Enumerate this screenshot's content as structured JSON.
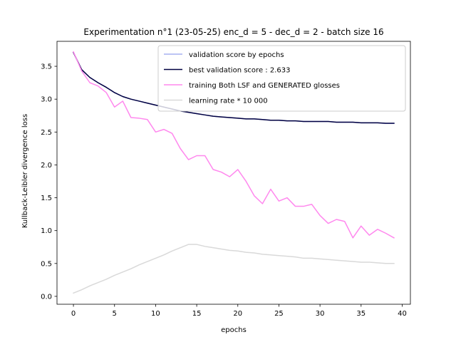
{
  "chart_data": {
    "type": "line",
    "title": "Experimentation n°1 (23-05-25) enc_d = 5 - dec_d = 2 - batch size 16",
    "xlabel": "epochs",
    "ylabel": "Kullback-Leibler divergence loss",
    "xlim": [
      -2,
      41
    ],
    "ylim": [
      -0.12,
      3.88
    ],
    "xticks": [
      0,
      5,
      10,
      15,
      20,
      25,
      30,
      35,
      40
    ],
    "yticks": [
      0.0,
      0.5,
      1.0,
      1.5,
      2.0,
      2.5,
      3.0,
      3.5
    ],
    "grid": false,
    "legend_position": "top-right",
    "x": [
      0,
      1,
      2,
      3,
      4,
      5,
      6,
      7,
      8,
      9,
      10,
      11,
      12,
      13,
      14,
      15,
      16,
      17,
      18,
      19,
      20,
      21,
      22,
      23,
      24,
      25,
      26,
      27,
      28,
      29,
      30,
      31,
      32,
      33,
      34,
      35,
      36,
      37,
      38,
      39
    ],
    "series": [
      {
        "name": "validation score by epochs",
        "color": "#a6b0f0",
        "values": [
          3.71,
          3.45,
          3.33,
          3.25,
          3.18,
          3.1,
          3.04,
          3.0,
          2.97,
          2.94,
          2.91,
          2.88,
          2.85,
          2.82,
          2.8,
          2.78,
          2.76,
          2.74,
          2.73,
          2.72,
          2.71,
          2.7,
          2.7,
          2.69,
          2.68,
          2.68,
          2.67,
          2.67,
          2.66,
          2.66,
          2.66,
          2.66,
          2.65,
          2.65,
          2.65,
          2.64,
          2.64,
          2.64,
          2.63,
          2.63
        ]
      },
      {
        "name": "best validation score : 2.633",
        "color": "#000040",
        "values": [
          3.71,
          3.45,
          3.33,
          3.25,
          3.18,
          3.1,
          3.04,
          3.0,
          2.97,
          2.94,
          2.91,
          2.88,
          2.85,
          2.82,
          2.8,
          2.78,
          2.76,
          2.74,
          2.73,
          2.72,
          2.71,
          2.7,
          2.7,
          2.69,
          2.68,
          2.68,
          2.67,
          2.67,
          2.66,
          2.66,
          2.66,
          2.66,
          2.65,
          2.65,
          2.65,
          2.64,
          2.64,
          2.64,
          2.633,
          2.633
        ]
      },
      {
        "name": "training Both LSF and GENERATED glosses",
        "color": "#ff88ee",
        "values": [
          3.72,
          3.43,
          3.25,
          3.2,
          3.1,
          2.88,
          2.97,
          2.72,
          2.71,
          2.69,
          2.5,
          2.54,
          2.48,
          2.25,
          2.08,
          2.14,
          2.14,
          1.93,
          1.89,
          1.82,
          1.93,
          1.75,
          1.53,
          1.41,
          1.63,
          1.45,
          1.5,
          1.37,
          1.37,
          1.4,
          1.23,
          1.11,
          1.17,
          1.14,
          0.89,
          1.07,
          0.93,
          1.02,
          0.96,
          0.89
        ]
      },
      {
        "name": "learning rate * 10 000",
        "color": "#d9d9d9",
        "values": [
          0.05,
          0.1,
          0.16,
          0.21,
          0.26,
          0.32,
          0.37,
          0.42,
          0.48,
          0.53,
          0.58,
          0.63,
          0.69,
          0.74,
          0.79,
          0.79,
          0.76,
          0.74,
          0.72,
          0.7,
          0.69,
          0.67,
          0.66,
          0.64,
          0.63,
          0.62,
          0.61,
          0.6,
          0.58,
          0.58,
          0.57,
          0.56,
          0.55,
          0.54,
          0.53,
          0.52,
          0.52,
          0.51,
          0.5,
          0.5
        ]
      }
    ]
  }
}
